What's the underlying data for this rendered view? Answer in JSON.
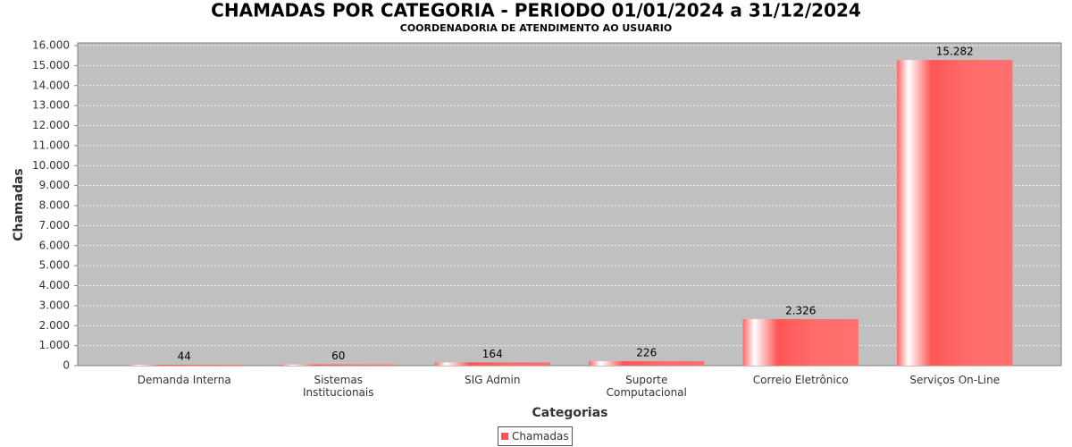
{
  "chart_data": {
    "type": "bar",
    "title": "CHAMADAS POR CATEGORIA - PERIODO 01/01/2024 a 31/12/2024",
    "subtitle": "COORDENADORIA DE ATENDIMENTO AO USUARIO",
    "x_label": "Categorias",
    "y_label": "Chamadas",
    "categories": [
      "Demanda Interna",
      "Sistemas\nInstitucionais",
      "SIG Admin",
      "Suporte\nComputacional",
      "Correio Eletrônico",
      "Serviços On-Line"
    ],
    "series": [
      {
        "name": "Chamadas",
        "color": "#ff5555",
        "values": [
          44,
          60,
          164,
          226,
          2326,
          15282
        ],
        "value_labels": [
          "44",
          "60",
          "164",
          "226",
          "2.326",
          "15.282"
        ]
      }
    ],
    "ylim": [
      0,
      16000
    ],
    "yticks": [
      0,
      {
        "value": 1000,
        "label": "1.000"
      },
      {
        "value": 2000,
        "label": "2.000"
      },
      {
        "value": 3000,
        "label": "3.000"
      },
      {
        "value": 4000,
        "label": "4.000"
      },
      {
        "value": 5000,
        "label": "5.000"
      },
      {
        "value": 6000,
        "label": "6.000"
      },
      {
        "value": 7000,
        "label": "7.000"
      },
      {
        "value": 8000,
        "label": "8.000"
      },
      {
        "value": 9000,
        "label": "9.000"
      },
      {
        "value": 10000,
        "label": "10.000"
      },
      {
        "value": 11000,
        "label": "11.000"
      },
      {
        "value": 12000,
        "label": "12.000"
      },
      {
        "value": 13000,
        "label": "13.000"
      },
      {
        "value": 14000,
        "label": "14.000"
      },
      {
        "value": 15000,
        "label": "15.000"
      },
      {
        "value": 16000,
        "label": "16.000"
      }
    ],
    "grid": true,
    "legend": "bottom"
  }
}
